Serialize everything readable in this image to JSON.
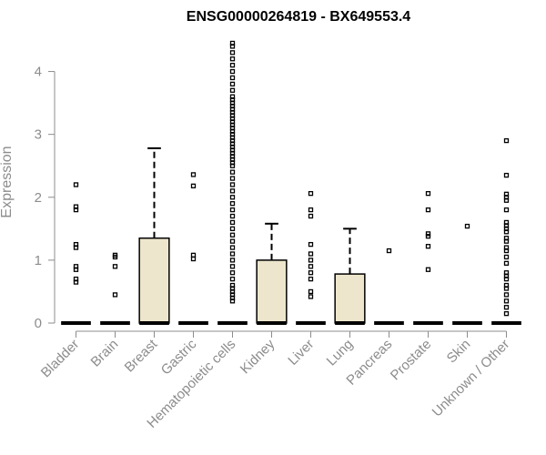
{
  "chart_data": {
    "type": "boxplot",
    "title": "ENSG00000264819 - BX649553.4",
    "xlabel": "",
    "ylabel": "Expression",
    "ylim": [
      0,
      4.5
    ],
    "yticks": [
      0,
      1,
      2,
      3,
      4
    ],
    "box_fill": "#ede6cc",
    "categories": [
      "Bladder",
      "Brain",
      "Breast",
      "Gastric",
      "Hematopoietic cells",
      "Kidney",
      "Liver",
      "Lung",
      "Pancreas",
      "Prostate",
      "Skin",
      "Unknown / Other"
    ],
    "boxes": [
      {
        "min": 0,
        "q1": 0,
        "median": 0,
        "q3": 0,
        "max": 0,
        "outliers": [
          0.65,
          0.7,
          0.85,
          0.9,
          1.2,
          1.25,
          1.8,
          1.85,
          2.2
        ]
      },
      {
        "min": 0,
        "q1": 0,
        "median": 0,
        "q3": 0,
        "max": 0,
        "outliers": [
          0.45,
          0.9,
          1.05,
          1.08
        ]
      },
      {
        "min": 0,
        "q1": 0,
        "median": 0,
        "q3": 1.35,
        "max": 2.78,
        "outliers": []
      },
      {
        "min": 0,
        "q1": 0,
        "median": 0,
        "q3": 0,
        "max": 0,
        "outliers": [
          1.02,
          1.08,
          2.18,
          2.36
        ]
      },
      {
        "min": 0,
        "q1": 0,
        "median": 0,
        "q3": 0,
        "max": 0,
        "outliers": [
          0.35,
          0.4,
          0.45,
          0.5,
          0.55,
          0.6,
          0.7,
          0.8,
          0.9,
          1.0,
          1.1,
          1.2,
          1.3,
          1.4,
          1.5,
          1.6,
          1.7,
          1.8,
          1.9,
          2.0,
          2.1,
          2.2,
          2.3,
          2.4,
          2.5,
          2.55,
          2.6,
          2.65,
          2.7,
          2.75,
          2.8,
          2.85,
          2.9,
          2.95,
          3.0,
          3.05,
          3.1,
          3.15,
          3.2,
          3.25,
          3.3,
          3.35,
          3.4,
          3.45,
          3.5,
          3.55,
          3.6,
          3.7,
          3.8,
          3.9,
          4.0,
          4.1,
          4.2,
          4.3,
          4.4,
          4.45
        ]
      },
      {
        "min": 0,
        "q1": 0,
        "median": 0,
        "q3": 1.0,
        "max": 1.58,
        "outliers": []
      },
      {
        "min": 0,
        "q1": 0,
        "median": 0,
        "q3": 0,
        "max": 0,
        "outliers": [
          0.42,
          0.5,
          0.7,
          0.8,
          0.9,
          1.0,
          1.1,
          1.25,
          1.7,
          1.8,
          2.06
        ]
      },
      {
        "min": 0,
        "q1": 0,
        "median": 0,
        "q3": 0.78,
        "max": 1.5,
        "outliers": []
      },
      {
        "min": 0,
        "q1": 0,
        "median": 0,
        "q3": 0,
        "max": 0,
        "outliers": [
          1.15
        ]
      },
      {
        "min": 0,
        "q1": 0,
        "median": 0,
        "q3": 0,
        "max": 0,
        "outliers": [
          0.85,
          1.22,
          1.38,
          1.42,
          1.8,
          2.06
        ]
      },
      {
        "min": 0,
        "q1": 0,
        "median": 0,
        "q3": 0,
        "max": 0,
        "outliers": [
          1.54
        ]
      },
      {
        "min": 0,
        "q1": 0,
        "median": 0,
        "q3": 0,
        "max": 0,
        "outliers": [
          0.15,
          0.25,
          0.35,
          0.45,
          0.55,
          0.6,
          0.7,
          0.75,
          0.8,
          0.95,
          1.05,
          1.15,
          1.2,
          1.3,
          1.35,
          1.45,
          1.5,
          1.55,
          1.6,
          1.8,
          1.95,
          2.0,
          2.05,
          2.35,
          2.9
        ]
      }
    ]
  }
}
